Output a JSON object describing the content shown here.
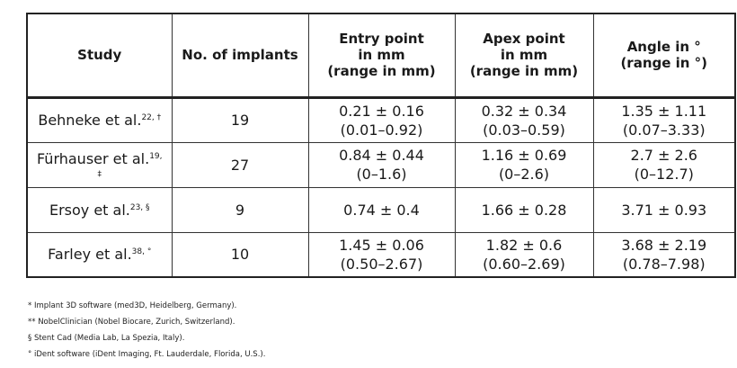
{
  "table": {
    "headers": [
      [
        "Study"
      ],
      [
        "No. of implants"
      ],
      [
        "Entry point",
        "in mm",
        "(range in mm)"
      ],
      [
        "Apex point",
        "in mm",
        "(range in mm)"
      ],
      [
        "Angle in °",
        "(range in °)"
      ]
    ],
    "rows": [
      {
        "study": "Behneke et al.",
        "sup": "22, †",
        "implants": "19",
        "entry": [
          "0.21 ± 0.16",
          "(0.01–0.92)"
        ],
        "apex": [
          "0.32 ± 0.34",
          "(0.03–0.59)"
        ],
        "angle": [
          "1.35 ± 1.11",
          "(0.07–3.33)"
        ]
      },
      {
        "study": "Fürhauser et al.",
        "sup": "19,",
        "sup2": "‡",
        "implants": "27",
        "entry": [
          "0.84 ± 0.44",
          "(0–1.6)"
        ],
        "apex": [
          "1.16 ± 0.69",
          "(0–2.6)"
        ],
        "angle": [
          "2.7 ± 2.6",
          "(0–12.7)"
        ]
      },
      {
        "study": "Ersoy et al.",
        "sup": "23, §",
        "implants": "9",
        "entry": [
          "0.74 ± 0.4"
        ],
        "apex": [
          "1.66 ± 0.28"
        ],
        "angle": [
          "3.71 ± 0.93"
        ]
      },
      {
        "study": "Farley et al.",
        "sup": "38, °",
        "implants": "10",
        "entry": [
          "1.45 ± 0.06",
          "(0.50–2.67)"
        ],
        "apex": [
          "1.82 ± 0.6",
          "(0.60–2.69)"
        ],
        "angle": [
          "3.68 ± 2.19",
          "(0.78–7.98)"
        ]
      }
    ]
  },
  "footnotes": [
    "* Implant 3D software (med3D, Heidelberg, Germany).",
    "** NobelClinician (Nobel Biocare, Zurich, Switzerland).",
    "§ Stent Cad (Media Lab, La Spezia, Italy).",
    "° iDent software (iDent Imaging, Ft. Lauderdale, Florida, U.S.)."
  ]
}
